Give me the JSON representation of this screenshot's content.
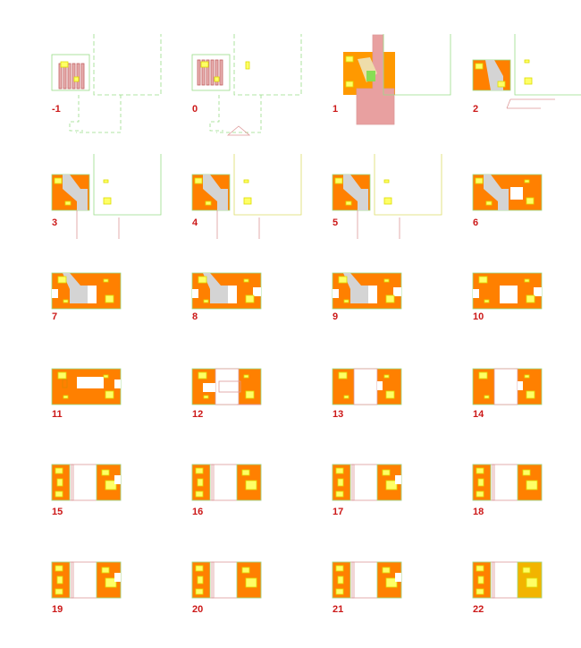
{
  "colors": {
    "label": "#cc1818",
    "floor_fill": "#ff8000",
    "room_yellow": "#ffff66",
    "outline_green": "#99dd88",
    "outline_pink": "#dd9999",
    "core_grey": "#d4d4d4",
    "highlight_floor": "#f2b400"
  },
  "floors": [
    {
      "label": "-1"
    },
    {
      "label": "0"
    },
    {
      "label": "1"
    },
    {
      "label": "2"
    },
    {
      "label": "3"
    },
    {
      "label": "4"
    },
    {
      "label": "5"
    },
    {
      "label": "6"
    },
    {
      "label": "7"
    },
    {
      "label": "8"
    },
    {
      "label": "9"
    },
    {
      "label": "10"
    },
    {
      "label": "11"
    },
    {
      "label": "12"
    },
    {
      "label": "13"
    },
    {
      "label": "14"
    },
    {
      "label": "15"
    },
    {
      "label": "16"
    },
    {
      "label": "17"
    },
    {
      "label": "18"
    },
    {
      "label": "19"
    },
    {
      "label": "20"
    },
    {
      "label": "21"
    },
    {
      "label": "22"
    }
  ]
}
